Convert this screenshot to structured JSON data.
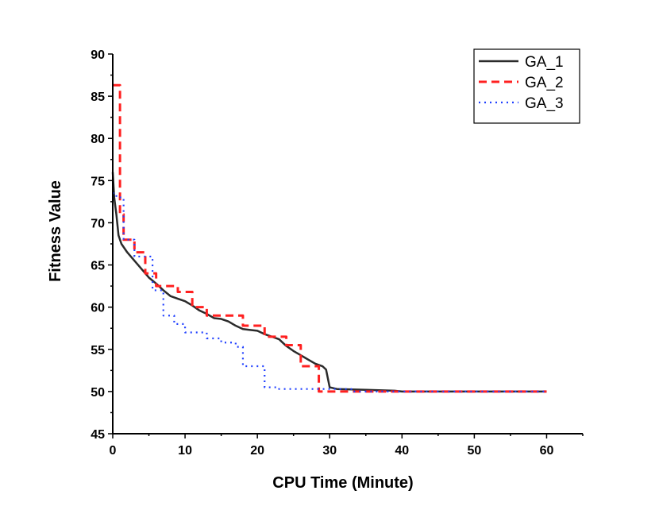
{
  "chart_data": {
    "type": "line",
    "title": "",
    "xlabel": "CPU Time (Minute)",
    "ylabel": "Fitness Value",
    "xlim": [
      0,
      65
    ],
    "ylim": [
      45,
      90
    ],
    "xticks": [
      0,
      10,
      20,
      30,
      40,
      50,
      60
    ],
    "yticks": [
      45,
      50,
      55,
      60,
      65,
      70,
      75,
      80,
      85,
      90
    ],
    "grid": false,
    "legend_position": "top-right",
    "series": [
      {
        "name": "GA_1",
        "color": "#2b2b2b",
        "style": "solid",
        "x": [
          0,
          0.2,
          0.5,
          0.8,
          1.2,
          2,
          3,
          4,
          5,
          6,
          7,
          8,
          9,
          10,
          11,
          12,
          13,
          14,
          15,
          16,
          17,
          18,
          19,
          20,
          21,
          22,
          23,
          24,
          25,
          26,
          27,
          28,
          29,
          29.5,
          30,
          31,
          35,
          39,
          40,
          50,
          60
        ],
        "y": [
          76,
          73,
          71,
          68.5,
          67.5,
          66.5,
          65.5,
          64.5,
          63.5,
          62.8,
          62,
          61.3,
          61,
          60.7,
          60.2,
          59.6,
          59.2,
          58.7,
          58.6,
          58.3,
          57.8,
          57.4,
          57.3,
          57.2,
          56.8,
          56.5,
          56.2,
          55.4,
          54.8,
          54.3,
          53.8,
          53.3,
          53,
          52.6,
          50.5,
          50.3,
          50.2,
          50.1,
          50,
          50,
          50
        ]
      },
      {
        "name": "GA_2",
        "color": "#ff2020",
        "style": "dashed",
        "x": [
          0,
          1,
          1,
          1.5,
          1.5,
          3,
          3,
          4.5,
          4.5,
          6,
          6,
          9,
          9,
          11,
          11,
          13,
          13,
          18,
          18,
          21,
          21,
          24,
          24,
          26,
          26,
          28.5,
          28.5,
          60
        ],
        "y": [
          86.3,
          86.3,
          71,
          71,
          68,
          68,
          66.5,
          66.5,
          64,
          64,
          62.5,
          62.5,
          61.8,
          61.8,
          60,
          60,
          59,
          59,
          57.8,
          57.8,
          56.5,
          56.5,
          55.5,
          55.5,
          53,
          53,
          50,
          50
        ]
      },
      {
        "name": "GA_3",
        "color": "#2040ff",
        "style": "dotted",
        "x": [
          0,
          0.5,
          0.5,
          1.5,
          1.5,
          3,
          3,
          5.5,
          5.5,
          7,
          7,
          8.5,
          8.5,
          10,
          10,
          13,
          13,
          15,
          15,
          17,
          17,
          18,
          18,
          21,
          21,
          23,
          23,
          33,
          33,
          60
        ],
        "y": [
          73.5,
          73.5,
          73,
          73,
          68,
          68,
          66,
          66,
          62,
          62,
          59,
          59,
          58,
          58,
          57,
          57,
          56.3,
          56.3,
          55.8,
          55.8,
          55.3,
          55.3,
          53,
          53,
          50.5,
          50.5,
          50.3,
          50.3,
          50,
          50
        ]
      }
    ]
  }
}
